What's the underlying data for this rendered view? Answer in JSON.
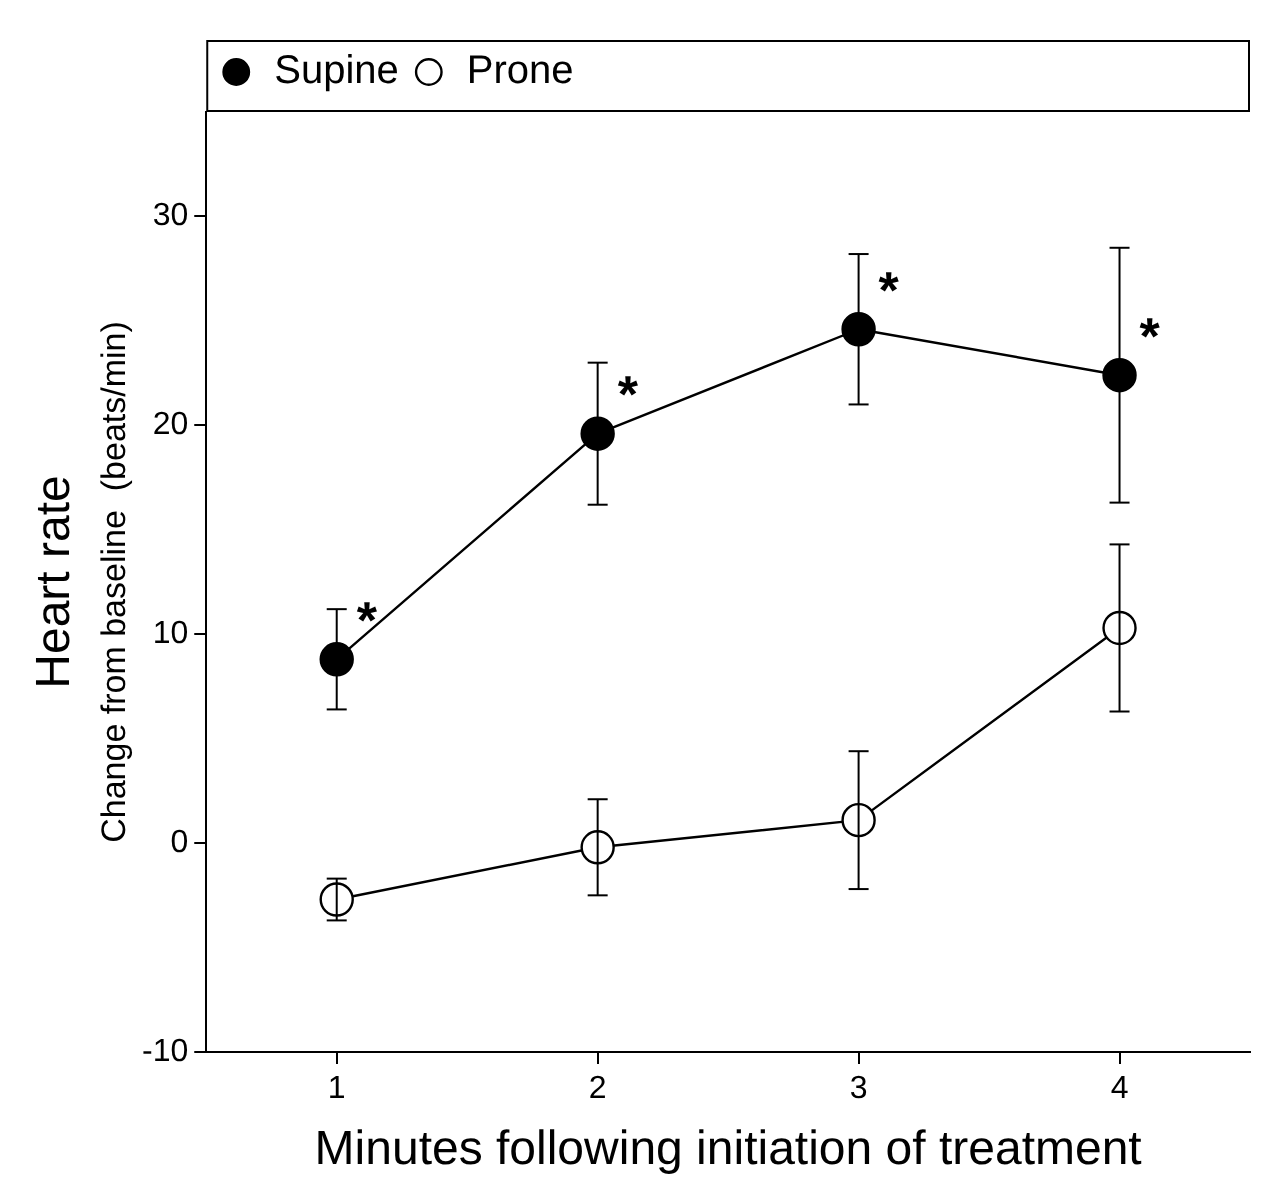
{
  "chart_data": {
    "type": "line",
    "xlabel": "Minutes following initiation of treatment",
    "ylabel": "Heart rate\nChange from baseline  (beats/min)",
    "categories": [
      "1",
      "2",
      "3",
      "4"
    ],
    "series": [
      {
        "name": "Supine",
        "color": "#000000",
        "values": [
          8.8,
          19.6,
          24.6,
          22.4
        ],
        "errors": [
          2.4,
          3.4,
          3.6,
          6.1
        ]
      },
      {
        "name": "Prone",
        "color": "#ffffff",
        "values": [
          -2.7,
          -0.2,
          1.1,
          10.3
        ],
        "errors": [
          1,
          2.3,
          3.3,
          4
        ]
      }
    ],
    "ylim": [
      -10,
      35
    ],
    "yticks": [
      -10,
      0,
      10,
      20,
      30
    ],
    "grid": false,
    "legend": "top left",
    "marker": "circle",
    "line_style": "solid",
    "annotations": [
      {
        "text": "*",
        "x": "1",
        "y": 8.8
      },
      {
        "text": "*",
        "x": "2",
        "y": 19.6
      },
      {
        "text": "*",
        "x": "3",
        "y": 24.6
      },
      {
        "text": "*",
        "x": "4",
        "y": 22.4
      }
    ]
  }
}
